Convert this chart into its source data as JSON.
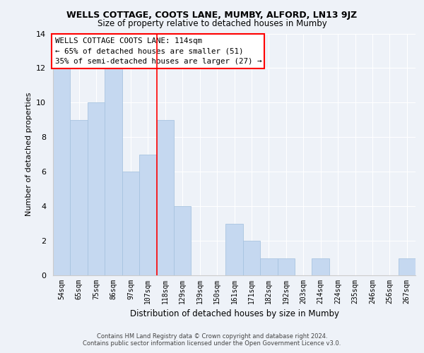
{
  "title1": "WELLS COTTAGE, COOTS LANE, MUMBY, ALFORD, LN13 9JZ",
  "title2": "Size of property relative to detached houses in Mumby",
  "xlabel": "Distribution of detached houses by size in Mumby",
  "ylabel": "Number of detached properties",
  "categories": [
    "54sqm",
    "65sqm",
    "75sqm",
    "86sqm",
    "97sqm",
    "107sqm",
    "118sqm",
    "129sqm",
    "139sqm",
    "150sqm",
    "161sqm",
    "171sqm",
    "182sqm",
    "192sqm",
    "203sqm",
    "214sqm",
    "224sqm",
    "235sqm",
    "246sqm",
    "256sqm",
    "267sqm"
  ],
  "values": [
    12,
    9,
    10,
    12,
    6,
    7,
    9,
    4,
    0,
    0,
    3,
    2,
    1,
    1,
    0,
    1,
    0,
    0,
    0,
    0,
    1
  ],
  "bar_color": "#c5d8f0",
  "bar_edge_color": "#a8c4e0",
  "vline_x": 6.0,
  "vline_color": "red",
  "annotation_title": "WELLS COTTAGE COOTS LANE: 114sqm",
  "annotation_line1": "← 65% of detached houses are smaller (51)",
  "annotation_line2": "35% of semi-detached houses are larger (27) →",
  "annotation_box_color": "white",
  "annotation_box_edge_color": "red",
  "ylim": [
    0,
    14
  ],
  "yticks": [
    0,
    2,
    4,
    6,
    8,
    10,
    12,
    14
  ],
  "footer1": "Contains HM Land Registry data © Crown copyright and database right 2024.",
  "footer2": "Contains public sector information licensed under the Open Government Licence v3.0.",
  "bg_color": "#eef2f8",
  "grid_color": "#ffffff"
}
